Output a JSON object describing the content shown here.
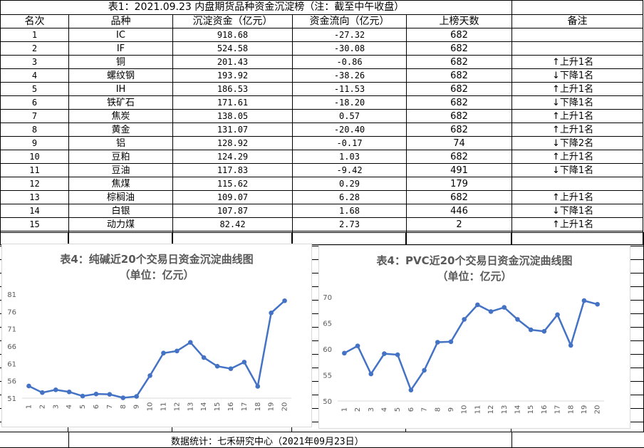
{
  "table": {
    "title": "表1：2021.09.23 内盘期货品种资金沉淀榜（注：截至中午收盘）",
    "headers": [
      "名次",
      "品种",
      "沉淀资金（亿元）",
      "资金流向（亿元）",
      "上榜天数",
      "备注"
    ],
    "rows": [
      {
        "rank": "1",
        "name": "IC",
        "capital": "918.68",
        "flow": "-27.32",
        "days": "682",
        "note": ""
      },
      {
        "rank": "2",
        "name": "IF",
        "capital": "524.58",
        "flow": "-30.08",
        "days": "682",
        "note": ""
      },
      {
        "rank": "3",
        "name": "铜",
        "capital": "201.43",
        "flow": "-0.86",
        "days": "682",
        "note": "↑上升1名"
      },
      {
        "rank": "4",
        "name": "螺纹钢",
        "capital": "193.92",
        "flow": "-38.26",
        "days": "682",
        "note": "↓下降1名"
      },
      {
        "rank": "5",
        "name": "IH",
        "capital": "186.53",
        "flow": "-11.53",
        "days": "682",
        "note": "↑上升1名"
      },
      {
        "rank": "6",
        "name": "铁矿石",
        "capital": "171.61",
        "flow": "-18.20",
        "days": "682",
        "note": "↓下降1名"
      },
      {
        "rank": "7",
        "name": "焦炭",
        "capital": "138.05",
        "flow": "0.57",
        "days": "682",
        "note": "↑上升1名"
      },
      {
        "rank": "8",
        "name": "黄金",
        "capital": "131.07",
        "flow": "-20.40",
        "days": "682",
        "note": "↑上升1名"
      },
      {
        "rank": "9",
        "name": "铝",
        "capital": "128.92",
        "flow": "-0.17",
        "days": "74",
        "note": "↓下降2名"
      },
      {
        "rank": "10",
        "name": "豆粕",
        "capital": "124.29",
        "flow": "1.03",
        "days": "682",
        "note": "↑上升1名"
      },
      {
        "rank": "11",
        "name": "豆油",
        "capital": "117.83",
        "flow": "-9.42",
        "days": "491",
        "note": "↓下降1名"
      },
      {
        "rank": "12",
        "name": "焦煤",
        "capital": "115.62",
        "flow": "0.29",
        "days": "179",
        "note": ""
      },
      {
        "rank": "13",
        "name": "棕榈油",
        "capital": "109.07",
        "flow": "6.28",
        "days": "682",
        "note": "↑上升1名"
      },
      {
        "rank": "14",
        "name": "白银",
        "capital": "107.87",
        "flow": "1.68",
        "days": "446",
        "note": "↓下降1名"
      },
      {
        "rank": "15",
        "name": "动力煤",
        "capital": "82.42",
        "flow": "2.73",
        "days": "2",
        "note": "↑上升1名"
      }
    ]
  },
  "chart_data": [
    {
      "type": "line",
      "title": "表4：纯碱近20个交易日资金沉淀曲线图",
      "subtitle": "（单位：亿元）",
      "x": [
        "1",
        "2",
        "3",
        "4",
        "5",
        "6",
        "7",
        "8",
        "9",
        "10",
        "11",
        "12",
        "13",
        "14",
        "15",
        "16",
        "17",
        "18",
        "19",
        "20"
      ],
      "ylim": [
        51,
        81
      ],
      "yticks": [
        51,
        56,
        61,
        66,
        71,
        76,
        81
      ],
      "color": "#4472c4",
      "grid": false,
      "series": [
        {
          "values": [
            54.5,
            52.6,
            53.4,
            52.8,
            51.6,
            52.2,
            52.1,
            51.1,
            51.5,
            57.5,
            64.0,
            64.6,
            67.1,
            62.7,
            60.2,
            59.5,
            61.4,
            54.4,
            75.6,
            79.1
          ]
        }
      ]
    },
    {
      "type": "line",
      "title": "表4：PVC近20个交易日资金沉淀曲线图",
      "subtitle": "（单位：亿元）",
      "x": [
        "1",
        "2",
        "3",
        "4",
        "5",
        "6",
        "7",
        "8",
        "9",
        "10",
        "11",
        "12",
        "13",
        "14",
        "15",
        "16",
        "17",
        "18",
        "19",
        "20"
      ],
      "ylim": [
        50,
        70
      ],
      "yticks": [
        50,
        55,
        60,
        65,
        70
      ],
      "color": "#4472c4",
      "grid": false,
      "series": [
        {
          "values": [
            59.2,
            60.6,
            55.2,
            59.1,
            58.9,
            52.1,
            55.9,
            61.3,
            61.4,
            65.7,
            68.5,
            67.2,
            68.0,
            65.7,
            63.7,
            63.4,
            66.6,
            60.7,
            69.3,
            68.6
          ]
        }
      ]
    }
  ],
  "footer": {
    "text": "数据统计：七禾研究中心（2021年09月23日）"
  }
}
